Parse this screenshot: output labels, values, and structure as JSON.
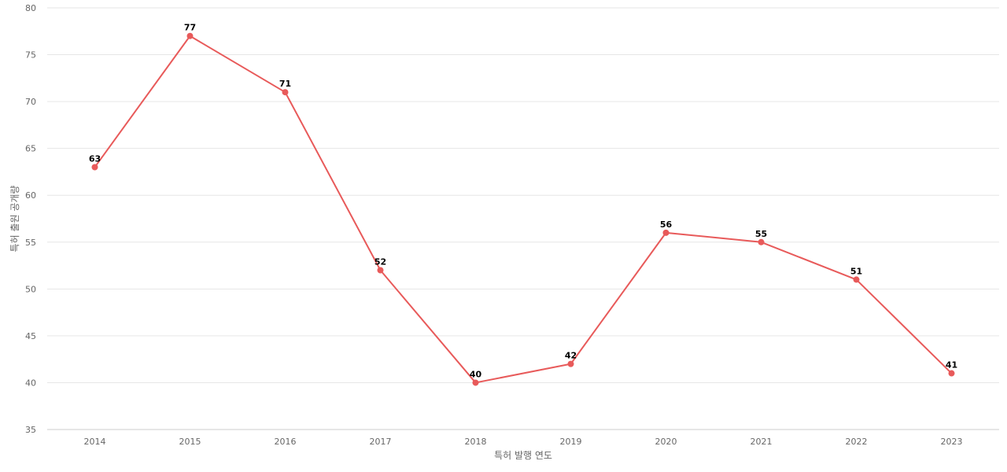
{
  "chart_data": {
    "type": "line",
    "title": "",
    "xlabel": "특허 발행 연도",
    "ylabel": "특허 출원 공개량",
    "categories": [
      "2014",
      "2015",
      "2016",
      "2017",
      "2018",
      "2019",
      "2020",
      "2021",
      "2022",
      "2023"
    ],
    "series": [
      {
        "values": [
          63,
          77,
          71,
          52,
          40,
          42,
          56,
          55,
          51,
          41
        ],
        "color": "#e85a5a"
      }
    ],
    "ylim": [
      35,
      80
    ],
    "yticks": [
      35,
      40,
      45,
      50,
      55,
      60,
      65,
      70,
      75,
      80
    ],
    "grid": true,
    "data_labels": true,
    "legend": "none"
  }
}
